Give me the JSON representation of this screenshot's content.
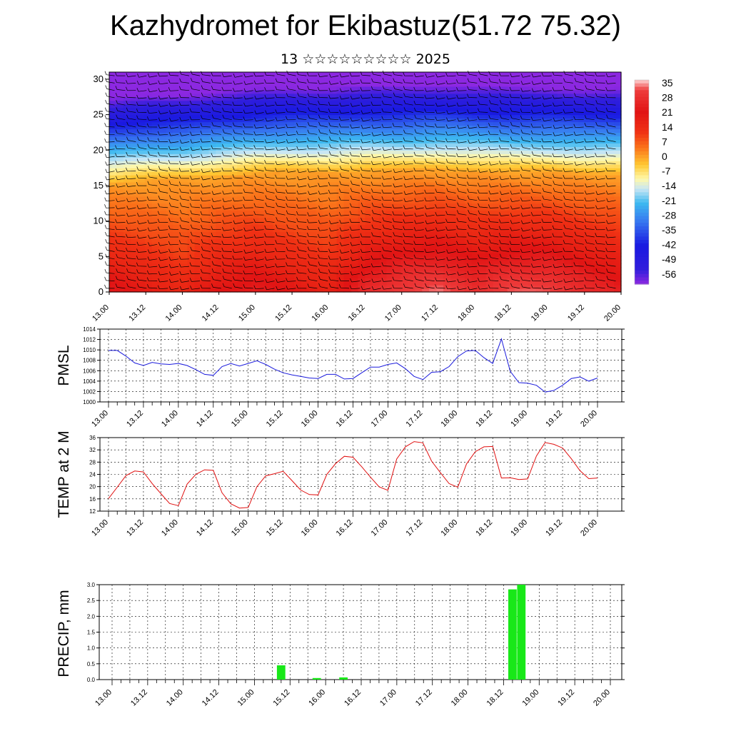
{
  "title": "Kazhydromet for Ekibastuz(51.72 75.32)",
  "subtitle": "13 ☆☆☆☆☆☆☆☆☆ 2025",
  "colors": {
    "pmsl_line": "#1a1adc",
    "temp_line": "#e01010",
    "precip_bar": "#18e818",
    "grid": "#000000"
  },
  "chart_data": [
    {
      "id": "temperature-cross-section",
      "type": "heatmap",
      "title": "",
      "xlabel": "",
      "ylabel": "",
      "x_tick_labels": [
        "13.00",
        "13.12",
        "14.00",
        "14.12",
        "15.00",
        "15.12",
        "16.00",
        "16.12",
        "17.00",
        "17.12",
        "18.00",
        "18.12",
        "19.00",
        "19.12",
        "20.00"
      ],
      "y_ticks": [
        0,
        5,
        10,
        15,
        20,
        25,
        30
      ],
      "ylim": [
        0,
        31
      ],
      "colorbar_labels": [
        "35",
        "28",
        "21",
        "14",
        "7",
        "0",
        "-7",
        "-14",
        "-21",
        "-28",
        "-35",
        "-42",
        "-49",
        "-56"
      ],
      "colorbar_range": [
        -63,
        38
      ],
      "has_wind_barbs": true,
      "freezing_level_profile": [
        15.2,
        15.6,
        15.8,
        16.2,
        16.6,
        16.8,
        16.8,
        17.0,
        17.0,
        17.2,
        17.0,
        16.8,
        16.8,
        16.6,
        16.6
      ],
      "surface_temp_profile": [
        24,
        20,
        16,
        22,
        25,
        21,
        18,
        28,
        33,
        35,
        30,
        34,
        34,
        29,
        25
      ]
    },
    {
      "id": "pmsl",
      "type": "line",
      "ylabel": "PMSL",
      "ylim": [
        1000,
        1014
      ],
      "y_ticks": [
        1000,
        1002,
        1004,
        1006,
        1008,
        1010,
        1012,
        1014
      ],
      "x_tick_labels": [
        "13.00",
        "13.12",
        "14.00",
        "14.12",
        "15.00",
        "15.12",
        "16.00",
        "16.12",
        "17.00",
        "17.12",
        "18.00",
        "18.12",
        "19.00",
        "19.12",
        "20.00"
      ],
      "x": [
        0,
        3,
        6,
        9,
        12,
        15,
        18,
        21,
        24,
        27,
        30,
        33,
        36,
        39,
        42,
        45,
        48,
        51,
        54,
        57,
        60,
        63,
        66,
        69,
        72,
        75,
        78,
        81,
        84,
        87,
        90,
        93,
        96,
        99,
        102,
        105,
        108,
        111,
        114,
        117,
        120,
        123,
        126,
        129,
        132,
        135,
        138,
        141,
        144,
        147,
        150,
        153,
        156,
        159,
        162,
        165,
        168
      ],
      "series": [
        {
          "values": [
            1009.9,
            1009.9,
            1008.8,
            1007.5,
            1007.0,
            1007.6,
            1007.3,
            1007.2,
            1007.4,
            1007.0,
            1006.2,
            1005.3,
            1005.1,
            1006.8,
            1007.4,
            1006.9,
            1007.4,
            1007.9,
            1007.2,
            1006.3,
            1005.6,
            1005.2,
            1004.9,
            1004.6,
            1004.5,
            1005.3,
            1005.3,
            1004.4,
            1004.5,
            1005.6,
            1006.7,
            1006.7,
            1007.2,
            1007.5,
            1006.4,
            1004.9,
            1004.3,
            1005.7,
            1005.8,
            1006.8,
            1008.7,
            1009.8,
            1009.9,
            1008.5,
            1007.4,
            1012.1,
            1005.9,
            1003.7,
            1003.6,
            1003.2,
            1001.9,
            1002.2,
            1003.2,
            1004.5,
            1004.8,
            1004.0,
            1004.6
          ]
        }
      ]
    },
    {
      "id": "temp-2m",
      "type": "line",
      "ylabel": "TEMP at 2 M",
      "ylim": [
        12,
        36
      ],
      "y_ticks": [
        12,
        16,
        20,
        24,
        28,
        32,
        36
      ],
      "x_tick_labels": [
        "13.00",
        "13.12",
        "14.00",
        "14.12",
        "15.00",
        "15.12",
        "16.00",
        "16.12",
        "17.00",
        "17.12",
        "18.00",
        "18.12",
        "19.00",
        "19.12",
        "20.00"
      ],
      "x": [
        0,
        3,
        6,
        9,
        12,
        15,
        18,
        21,
        24,
        27,
        30,
        33,
        36,
        39,
        42,
        45,
        48,
        51,
        54,
        57,
        60,
        63,
        66,
        69,
        72,
        75,
        78,
        81,
        84,
        87,
        90,
        93,
        96,
        99,
        102,
        105,
        108,
        111,
        114,
        117,
        120,
        123,
        126,
        129,
        132,
        135,
        138,
        141,
        144,
        147,
        150,
        153,
        156,
        159,
        162,
        165,
        168
      ],
      "series": [
        {
          "values": [
            16.1,
            19.8,
            23.6,
            25.1,
            24.8,
            21.0,
            17.7,
            14.5,
            13.8,
            20.8,
            24.0,
            25.5,
            25.3,
            18.0,
            14.4,
            13.0,
            13.2,
            20.0,
            23.5,
            24.2,
            25.0,
            22.0,
            18.9,
            17.4,
            17.3,
            24.0,
            27.5,
            29.9,
            29.6,
            26.5,
            23.1,
            19.9,
            18.8,
            29.0,
            33.0,
            34.7,
            34.3,
            28.3,
            24.6,
            21.0,
            19.8,
            27.4,
            31.4,
            33.0,
            33.1,
            22.8,
            22.9,
            22.3,
            22.5,
            30.0,
            34.4,
            33.8,
            32.6,
            29.1,
            25.2,
            22.6,
            22.8
          ]
        }
      ]
    },
    {
      "id": "precip",
      "type": "bar",
      "ylabel": "PRECIP, mm",
      "ylim": [
        0,
        3
      ],
      "y_tick_labels": [
        "0.0",
        "0.5",
        "1.0",
        "1.5",
        "2.0",
        "2.5",
        "3.0"
      ],
      "x_tick_labels": [
        "13.00",
        "13.12",
        "14.00",
        "14.12",
        "15.00",
        "15.12",
        "16.00",
        "16.12",
        "17.00",
        "17.12",
        "18.00",
        "18.12",
        "19.00",
        "19.12",
        "20.00"
      ],
      "bars": [
        {
          "hour": 57,
          "value": 0.45
        },
        {
          "hour": 69,
          "value": 0.05
        },
        {
          "hour": 78,
          "value": 0.07
        },
        {
          "hour": 135,
          "value": 2.85
        },
        {
          "hour": 138,
          "value": 3.0
        }
      ]
    }
  ]
}
